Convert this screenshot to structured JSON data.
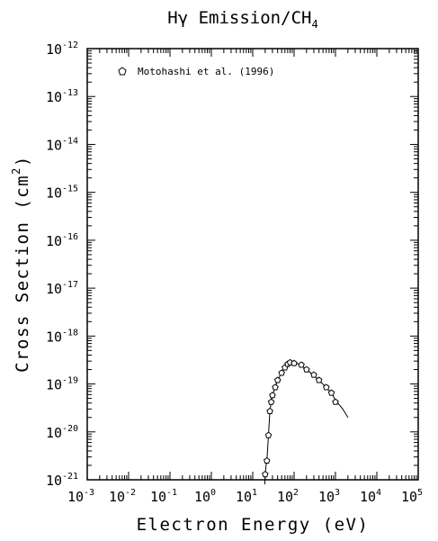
{
  "chart_data": {
    "type": "scatter",
    "title_main": "Hγ Emission/CH",
    "title_sub": "4",
    "xlabel": "Electron Energy (eV)",
    "ylabel_main": "Cross Section (cm",
    "ylabel_sup": "2",
    "ylabel_end": ")",
    "x_scale": "log",
    "y_scale": "log",
    "xlim": [
      0.001,
      100000
    ],
    "ylim": [
      1e-21,
      1e-12
    ],
    "grid": false,
    "legend_position": "top-left",
    "x_ticks": [
      {
        "base": "10",
        "exp": "-3"
      },
      {
        "base": "10",
        "exp": "-2"
      },
      {
        "base": "10",
        "exp": "-1"
      },
      {
        "base": "10",
        "exp": "0"
      },
      {
        "base": "10",
        "exp": "1"
      },
      {
        "base": "10",
        "exp": "2"
      },
      {
        "base": "10",
        "exp": "3"
      },
      {
        "base": "10",
        "exp": "4"
      },
      {
        "base": "10",
        "exp": "5"
      }
    ],
    "y_ticks": [
      {
        "base": "10",
        "exp": "-21"
      },
      {
        "base": "10",
        "exp": "-20"
      },
      {
        "base": "10",
        "exp": "-19"
      },
      {
        "base": "10",
        "exp": "-18"
      },
      {
        "base": "10",
        "exp": "-17"
      },
      {
        "base": "10",
        "exp": "-16"
      },
      {
        "base": "10",
        "exp": "-15"
      },
      {
        "base": "10",
        "exp": "-14"
      },
      {
        "base": "10",
        "exp": "-13"
      },
      {
        "base": "10",
        "exp": "-12"
      }
    ],
    "series": [
      {
        "name": "Motohashi et al. (1996)",
        "marker": "pentagon",
        "x": [
          20,
          22,
          24,
          26,
          28,
          30,
          35,
          40,
          50,
          60,
          70,
          80,
          100,
          150,
          200,
          300,
          400,
          600,
          800,
          1000
        ],
        "y": [
          1.3e-21,
          2.5e-21,
          8.5e-21,
          2.7e-20,
          4.2e-20,
          5.8e-20,
          8.5e-20,
          1.2e-19,
          1.7e-19,
          2.2e-19,
          2.6e-19,
          2.8e-19,
          2.7e-19,
          2.5e-19,
          2e-19,
          1.55e-19,
          1.2e-19,
          8.5e-20,
          6.5e-20,
          4.2e-20
        ]
      },
      {
        "name": "",
        "type": "line",
        "x": [
          19.5,
          20,
          21,
          22,
          24,
          26,
          28,
          30,
          35,
          40,
          50,
          60,
          70,
          80,
          90,
          100,
          120,
          150,
          200,
          300,
          400,
          600,
          800,
          1000,
          1500,
          2000
        ],
        "y": [
          8e-22,
          1.3e-21,
          2e-21,
          2.5e-21,
          8.5e-21,
          2.7e-20,
          4.2e-20,
          5.8e-20,
          8.5e-20,
          1.2e-19,
          1.7e-19,
          2.2e-19,
          2.6e-19,
          2.8e-19,
          2.85e-19,
          2.8e-19,
          2.65e-19,
          2.45e-19,
          2e-19,
          1.5e-19,
          1.2e-19,
          8.5e-20,
          6.5e-20,
          4.6e-20,
          3e-20,
          2e-20
        ]
      }
    ]
  }
}
